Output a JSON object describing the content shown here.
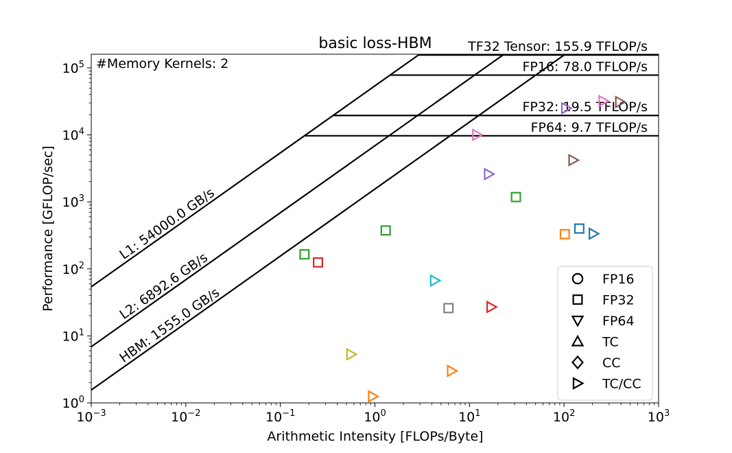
{
  "chart_data": {
    "type": "scatter",
    "title": "basic loss-HBM",
    "xlabel": "Arithmetic Intensity [FLOPs/Byte]",
    "ylabel": "Performance [GFLOP/sec]",
    "x_scale": "log",
    "y_scale": "log",
    "xlim": [
      0.001,
      1000
    ],
    "ylim": [
      1,
      160000
    ],
    "x_ticks": [
      {
        "value": 0.001,
        "base": "10",
        "exp": "−3"
      },
      {
        "value": 0.01,
        "base": "10",
        "exp": "−2"
      },
      {
        "value": 0.1,
        "base": "10",
        "exp": "−1"
      },
      {
        "value": 1,
        "base": "10",
        "exp": "0"
      },
      {
        "value": 10,
        "base": "10",
        "exp": "1"
      },
      {
        "value": 100,
        "base": "10",
        "exp": "2"
      },
      {
        "value": 1000,
        "base": "10",
        "exp": "3"
      }
    ],
    "y_ticks": [
      {
        "value": 1,
        "base": "10",
        "exp": "0"
      },
      {
        "value": 10,
        "base": "10",
        "exp": "1"
      },
      {
        "value": 100,
        "base": "10",
        "exp": "2"
      },
      {
        "value": 1000,
        "base": "10",
        "exp": "3"
      },
      {
        "value": 10000,
        "base": "10",
        "exp": "4"
      },
      {
        "value": 100000,
        "base": "10",
        "exp": "5"
      }
    ],
    "annotation": "#Memory Kernels: 2",
    "memory_roofs": [
      {
        "label": "L1: 54000.0 GB/s",
        "bandwidth_gbs": 54000
      },
      {
        "label": "L2: 6892.6 GB/s",
        "bandwidth_gbs": 6892.6
      },
      {
        "label": "HBM: 1555.0 GB/s",
        "bandwidth_gbs": 1555
      }
    ],
    "compute_roofs": [
      {
        "label": "TF32 Tensor: 155.9 TFLOP/s",
        "gflops": 155900
      },
      {
        "label": "FP16: 78.0 TFLOP/s",
        "gflops": 78000
      },
      {
        "label": "FP32: 19.5 TFLOP/s",
        "gflops": 19500
      },
      {
        "label": "FP64: 9.7 TFLOP/s",
        "gflops": 9700
      }
    ],
    "legend": {
      "position": "lower right",
      "entries": [
        {
          "label": "FP16",
          "marker": "circle"
        },
        {
          "label": "FP32",
          "marker": "square"
        },
        {
          "label": "FP64",
          "marker": "triangle-down"
        },
        {
          "label": "TC",
          "marker": "triangle-up"
        },
        {
          "label": "CC",
          "marker": "diamond"
        },
        {
          "label": "TC/CC",
          "marker": "triangle-right"
        }
      ]
    },
    "points": [
      {
        "x": 0.18,
        "y": 165,
        "marker": "square",
        "color": "#2ca02c"
      },
      {
        "x": 0.25,
        "y": 125,
        "marker": "square",
        "color": "#d62728"
      },
      {
        "x": 1.3,
        "y": 375,
        "marker": "square",
        "color": "#2ca02c"
      },
      {
        "x": 6.0,
        "y": 26,
        "marker": "square",
        "color": "#7f7f7f"
      },
      {
        "x": 31,
        "y": 1180,
        "marker": "square",
        "color": "#2ca02c"
      },
      {
        "x": 102,
        "y": 330,
        "marker": "square",
        "color": "#ff7f0e"
      },
      {
        "x": 145,
        "y": 400,
        "marker": "square",
        "color": "#1f77b4"
      },
      {
        "x": 0.56,
        "y": 5.3,
        "marker": "triangle-right",
        "color": "#bcbd22"
      },
      {
        "x": 0.95,
        "y": 1.25,
        "marker": "triangle-right",
        "color": "#ff7f0e"
      },
      {
        "x": 4.3,
        "y": 67,
        "marker": "triangle-right",
        "color": "#17becf"
      },
      {
        "x": 6.5,
        "y": 3.0,
        "marker": "triangle-right",
        "color": "#ff7f0e"
      },
      {
        "x": 12,
        "y": 10000,
        "marker": "triangle-right",
        "color": "#e377c2"
      },
      {
        "x": 16,
        "y": 2600,
        "marker": "triangle-right",
        "color": "#9467bd"
      },
      {
        "x": 17,
        "y": 27,
        "marker": "triangle-right",
        "color": "#d62728"
      },
      {
        "x": 105,
        "y": 25000,
        "marker": "triangle-right",
        "color": "#9467bd"
      },
      {
        "x": 125,
        "y": 4200,
        "marker": "triangle-right",
        "color": "#8c564b"
      },
      {
        "x": 205,
        "y": 335,
        "marker": "triangle-right",
        "color": "#1f77b4"
      },
      {
        "x": 260,
        "y": 32000,
        "marker": "triangle-right",
        "color": "#e377c2"
      },
      {
        "x": 390,
        "y": 31000,
        "marker": "triangle-right",
        "color": "#8c564b"
      }
    ]
  }
}
